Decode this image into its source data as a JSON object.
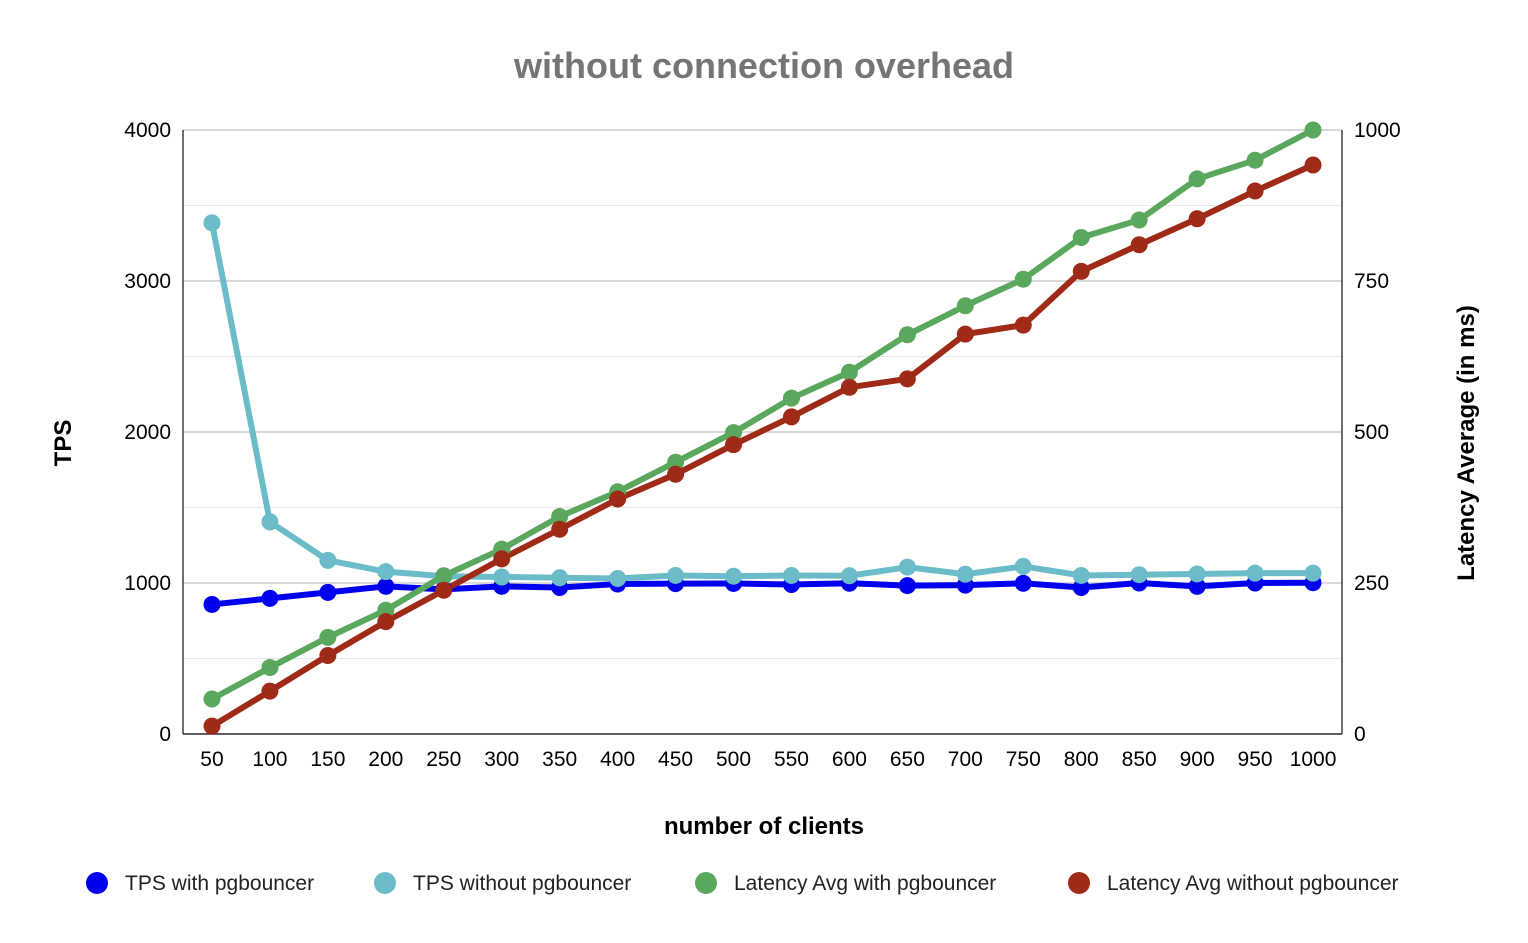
{
  "chart_data": {
    "type": "line",
    "title": "without connection overhead",
    "xlabel": "number of clients",
    "ylabel_left": "TPS",
    "ylabel_right": "Latency Average (in ms)",
    "ylim_left": [
      0,
      4000
    ],
    "ylim_right": [
      0,
      1000
    ],
    "yticks_left": [
      "0",
      "1000",
      "2000",
      "3000",
      "4000"
    ],
    "yticks_right": [
      "0",
      "250",
      "500",
      "750",
      "1000"
    ],
    "grid": true,
    "legend_position": "bottom",
    "categories": [
      "50",
      "100",
      "150",
      "200",
      "250",
      "300",
      "350",
      "400",
      "450",
      "500",
      "550",
      "600",
      "650",
      "700",
      "750",
      "800",
      "850",
      "900",
      "950",
      "1000"
    ],
    "series": [
      {
        "name": "TPS with pgbouncer",
        "axis": "left",
        "color": "#0000ee",
        "values": [
          858,
          898,
          938,
          978,
          958,
          978,
          970,
          993,
          996,
          997,
          990,
          998,
          983,
          986,
          998,
          970,
          1000,
          978,
          1000,
          1002
        ]
      },
      {
        "name": "TPS without pgbouncer",
        "axis": "left",
        "color": "#6bbcc8",
        "values": [
          3385,
          1405,
          1150,
          1075,
          1045,
          1040,
          1035,
          1030,
          1050,
          1045,
          1050,
          1048,
          1105,
          1058,
          1110,
          1050,
          1055,
          1060,
          1065,
          1065
        ]
      },
      {
        "name": "Latency Avg with pgbouncer",
        "axis": "right",
        "color": "#5aa75e",
        "values": [
          58,
          110,
          160,
          205,
          262,
          306,
          360,
          401,
          450,
          499,
          556,
          599,
          661,
          709,
          753,
          822,
          851,
          919,
          950,
          1000
        ]
      },
      {
        "name": "Latency Avg without pgbouncer",
        "axis": "right",
        "color": "#9e2a17",
        "values": [
          13,
          71,
          130,
          186,
          238,
          290,
          339,
          389,
          430,
          479,
          525,
          574,
          588,
          662,
          677,
          766,
          810,
          853,
          899,
          942
        ]
      }
    ]
  }
}
